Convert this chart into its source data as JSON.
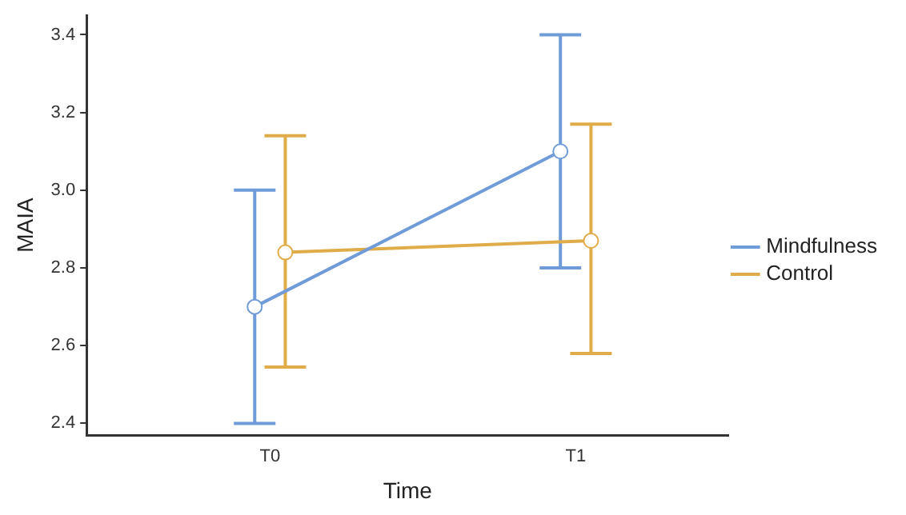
{
  "chart_data": {
    "type": "line",
    "xlabel": "Time",
    "ylabel": "MAIA",
    "categories": [
      "T0",
      "T1"
    ],
    "series": [
      {
        "name": "Mindfulness",
        "color": "#6f9bd8",
        "values": [
          2.7,
          3.1
        ],
        "errors": [
          [
            2.4,
            3.0
          ],
          [
            2.8,
            3.4
          ]
        ]
      },
      {
        "name": "Control",
        "color": "#e0ac4a",
        "values": [
          2.84,
          2.87
        ],
        "errors": [
          [
            2.545,
            3.14
          ],
          [
            2.58,
            3.17
          ]
        ]
      }
    ],
    "ylim": [
      2.37,
      3.45
    ],
    "yticks": [
      2.4,
      2.6,
      2.8,
      {
        "value": 3,
        "label": "3.0"
      },
      3.2,
      3.4
    ],
    "grid": false,
    "legend": "right",
    "marker": "circle",
    "line_style": "solid"
  }
}
